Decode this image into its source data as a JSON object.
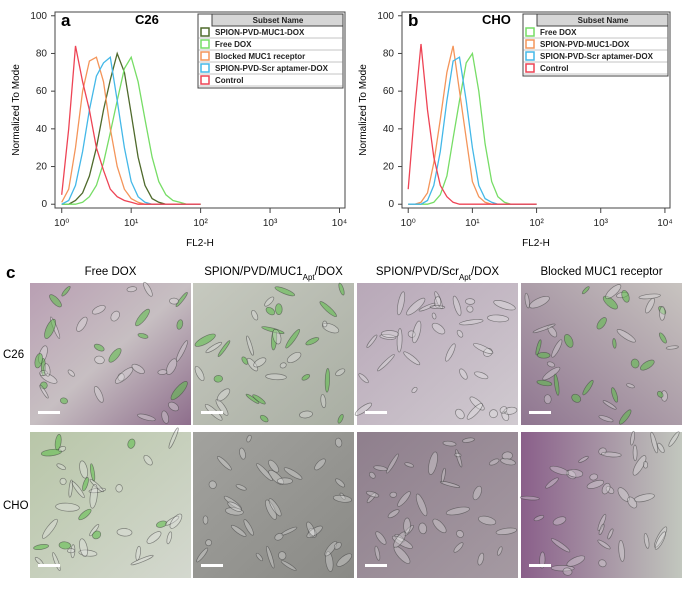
{
  "chart_data": [
    {
      "type": "line",
      "panel": "a",
      "cell_line": "C26",
      "legend_title": "Subset Name",
      "xlabel": "FL2-H",
      "ylabel": "Normalized To Mode",
      "log_x": true,
      "xlim": [
        0.8,
        12000
      ],
      "ylim": [
        -2,
        102
      ],
      "xticks": [
        {
          "value": 1,
          "label": "10⁰"
        },
        {
          "value": 10,
          "label": "10¹"
        },
        {
          "value": 100,
          "label": "10²"
        },
        {
          "value": 1000,
          "label": "10³"
        },
        {
          "value": 10000,
          "label": "10⁴"
        }
      ],
      "yticks": [
        0,
        20,
        40,
        60,
        80,
        100
      ],
      "x": [
        1,
        1.26,
        1.58,
        2,
        2.5,
        3.16,
        4,
        5,
        6.3,
        8,
        10,
        12.6,
        15.8,
        20,
        25,
        31.6,
        40,
        50,
        63,
        80,
        100
      ],
      "series": [
        {
          "name": "SPION-PVD-MUC1-DOX",
          "color": "#4f6a2c",
          "values": [
            0,
            0,
            2,
            6,
            15,
            30,
            50,
            66,
            80,
            70,
            48,
            25,
            10,
            3,
            1,
            0,
            0,
            0,
            0,
            0,
            0
          ]
        },
        {
          "name": "Free DOX",
          "color": "#77dd66",
          "values": [
            0,
            0,
            0,
            1,
            4,
            10,
            22,
            38,
            55,
            72,
            78,
            65,
            45,
            25,
            12,
            5,
            2,
            1,
            0,
            0,
            0
          ]
        },
        {
          "name": "Blocked MUC1 receptor",
          "color": "#f4955a",
          "values": [
            1,
            8,
            30,
            60,
            76,
            78,
            65,
            40,
            20,
            8,
            3,
            1,
            0,
            0,
            0,
            0,
            0,
            0,
            0,
            0,
            0
          ]
        },
        {
          "name": "SPION-PVD-Scr aptamer-DOX",
          "color": "#44b8e8",
          "values": [
            0,
            2,
            10,
            28,
            50,
            68,
            75,
            78,
            55,
            30,
            12,
            4,
            1,
            0,
            0,
            0,
            0,
            0,
            0,
            0,
            0
          ]
        },
        {
          "name": "Control",
          "color": "#ee4455",
          "values": [
            5,
            40,
            84,
            65,
            50,
            30,
            18,
            8,
            4,
            2,
            1,
            0,
            0,
            0,
            0,
            0,
            0,
            0,
            0,
            0,
            0
          ]
        }
      ]
    },
    {
      "type": "line",
      "panel": "b",
      "cell_line": "CHO",
      "legend_title": "Subset Name",
      "xlabel": "FL2-H",
      "ylabel": "Normalized To Mode",
      "log_x": true,
      "xlim": [
        0.8,
        12000
      ],
      "ylim": [
        -2,
        102
      ],
      "xticks": [
        {
          "value": 1,
          "label": "10⁰"
        },
        {
          "value": 10,
          "label": "10¹"
        },
        {
          "value": 100,
          "label": "10²"
        },
        {
          "value": 1000,
          "label": "10³"
        },
        {
          "value": 10000,
          "label": "10⁴"
        }
      ],
      "yticks": [
        0,
        20,
        40,
        60,
        80,
        100
      ],
      "x": [
        1,
        1.26,
        1.58,
        2,
        2.5,
        3.16,
        4,
        5,
        6.3,
        8,
        10,
        12.6,
        15.8,
        20,
        25,
        31.6,
        40,
        50,
        63,
        80,
        100
      ],
      "series": [
        {
          "name": "Free DOX",
          "color": "#77dd66",
          "values": [
            0,
            0,
            0,
            0,
            1,
            5,
            15,
            35,
            55,
            75,
            80,
            60,
            32,
            12,
            4,
            1,
            0,
            0,
            0,
            0,
            0
          ]
        },
        {
          "name": "SPION-PVD-MUC1-DOX",
          "color": "#f4955a",
          "values": [
            0,
            0,
            1,
            6,
            22,
            45,
            70,
            84,
            60,
            35,
            12,
            4,
            1,
            0,
            0,
            0,
            0,
            0,
            0,
            0,
            0
          ]
        },
        {
          "name": "SPION-PVD-Scr aptamer-DOX",
          "color": "#44b8e8",
          "values": [
            0,
            0,
            0,
            2,
            10,
            28,
            55,
            76,
            78,
            55,
            30,
            10,
            3,
            1,
            0,
            0,
            0,
            0,
            0,
            0,
            0
          ]
        },
        {
          "name": "Control",
          "color": "#ee4455",
          "values": [
            8,
            50,
            85,
            50,
            25,
            10,
            4,
            1,
            0,
            0,
            0,
            0,
            0,
            0,
            0,
            0,
            0,
            0,
            0,
            0,
            0
          ]
        }
      ]
    }
  ],
  "panel_c": {
    "letter": "c",
    "columns": [
      [
        "Free DOX"
      ],
      [
        "SPION/PVD/MUC1",
        "Apt",
        "/DOX"
      ],
      [
        "SPION/PVD/Scr",
        "Apt",
        "/DOX"
      ],
      [
        "Blocked MUC1 receptor"
      ]
    ],
    "rows": [
      "C26",
      "CHO"
    ]
  }
}
